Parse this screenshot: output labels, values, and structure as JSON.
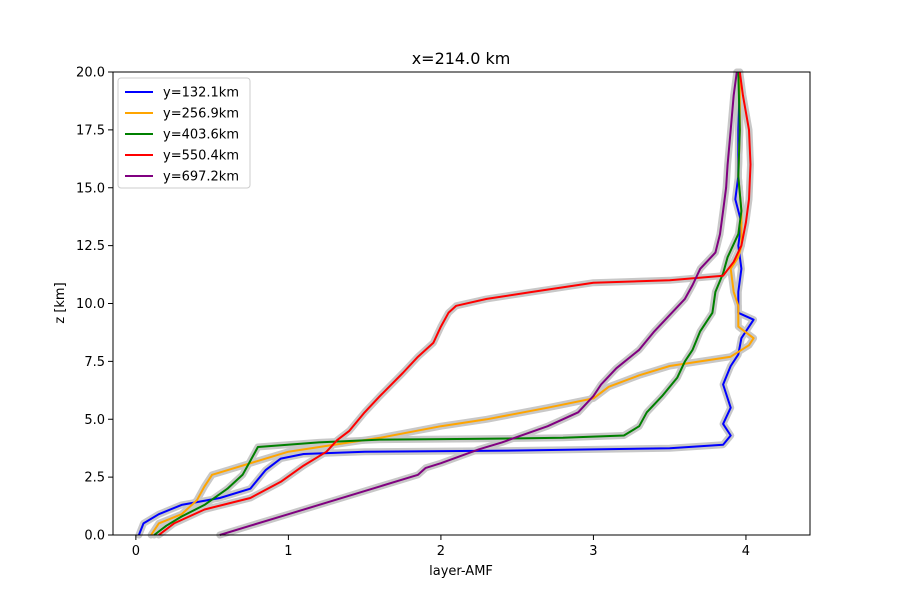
{
  "chart_data": {
    "type": "line",
    "title": "x=214.0 km",
    "xlabel": "layer-AMF",
    "ylabel": "z [km]",
    "xlim": [
      -0.15,
      4.42
    ],
    "ylim": [
      0,
      20
    ],
    "xticks": [
      0,
      1,
      2,
      3,
      4
    ],
    "xtick_labels": [
      "0",
      "1",
      "2",
      "3",
      "4"
    ],
    "yticks": [
      0,
      2.5,
      5,
      7.5,
      10,
      12.5,
      15,
      17.5,
      20
    ],
    "ytick_labels": [
      "0.0",
      "2.5",
      "5.0",
      "7.5",
      "10.0",
      "12.5",
      "15.0",
      "17.5",
      "20.0"
    ],
    "legend_position": "top-left",
    "uncertainty_band_color": "#c8c8c8",
    "series": [
      {
        "name": "y=132.1km",
        "color": "#0000ff",
        "points": [
          [
            0.02,
            0
          ],
          [
            0.05,
            0.5
          ],
          [
            0.15,
            0.9
          ],
          [
            0.3,
            1.3
          ],
          [
            0.55,
            1.6
          ],
          [
            0.75,
            2.0
          ],
          [
            0.85,
            2.8
          ],
          [
            0.95,
            3.3
          ],
          [
            1.1,
            3.5
          ],
          [
            1.5,
            3.6
          ],
          [
            2.5,
            3.65
          ],
          [
            3.5,
            3.75
          ],
          [
            3.85,
            3.9
          ],
          [
            3.9,
            4.3
          ],
          [
            3.85,
            4.8
          ],
          [
            3.9,
            5.5
          ],
          [
            3.85,
            6.5
          ],
          [
            3.9,
            7.3
          ],
          [
            3.95,
            7.8
          ],
          [
            3.97,
            8.5
          ],
          [
            4.05,
            9.3
          ],
          [
            3.95,
            9.6
          ],
          [
            3.95,
            10.5
          ],
          [
            3.97,
            11.5
          ],
          [
            3.95,
            12.5
          ],
          [
            3.97,
            13.5
          ],
          [
            3.93,
            14.5
          ],
          [
            3.95,
            15.5
          ],
          [
            3.95,
            17.5
          ],
          [
            3.96,
            19.5
          ],
          [
            3.96,
            20
          ]
        ]
      },
      {
        "name": "y=256.9km",
        "color": "#ffa500",
        "points": [
          [
            0.1,
            0
          ],
          [
            0.15,
            0.5
          ],
          [
            0.3,
            0.9
          ],
          [
            0.4,
            1.5
          ],
          [
            0.45,
            2.1
          ],
          [
            0.5,
            2.6
          ],
          [
            0.6,
            2.8
          ],
          [
            0.8,
            3.2
          ],
          [
            1.0,
            3.6
          ],
          [
            1.3,
            3.9
          ],
          [
            1.6,
            4.2
          ],
          [
            2.0,
            4.7
          ],
          [
            2.3,
            5.0
          ],
          [
            2.7,
            5.5
          ],
          [
            3.0,
            5.9
          ],
          [
            3.1,
            6.4
          ],
          [
            3.3,
            6.9
          ],
          [
            3.5,
            7.3
          ],
          [
            3.9,
            7.7
          ],
          [
            4.02,
            8.2
          ],
          [
            4.05,
            8.5
          ],
          [
            3.95,
            9.0
          ],
          [
            3.95,
            9.9
          ],
          [
            3.92,
            10.5
          ],
          [
            3.9,
            11.5
          ],
          [
            3.95,
            12.0
          ],
          [
            3.97,
            12.5
          ],
          [
            3.97,
            14.0
          ],
          [
            3.95,
            15.5
          ],
          [
            3.96,
            17.5
          ],
          [
            3.96,
            20
          ]
        ]
      },
      {
        "name": "y=403.6km",
        "color": "#008000",
        "points": [
          [
            0.12,
            0
          ],
          [
            0.2,
            0.4
          ],
          [
            0.3,
            0.8
          ],
          [
            0.45,
            1.3
          ],
          [
            0.6,
            2.0
          ],
          [
            0.7,
            2.6
          ],
          [
            0.75,
            3.2
          ],
          [
            0.8,
            3.8
          ],
          [
            1.2,
            4.0
          ],
          [
            1.6,
            4.12
          ],
          [
            2.2,
            4.15
          ],
          [
            2.8,
            4.2
          ],
          [
            3.2,
            4.3
          ],
          [
            3.3,
            4.7
          ],
          [
            3.35,
            5.3
          ],
          [
            3.45,
            6.0
          ],
          [
            3.55,
            6.8
          ],
          [
            3.6,
            7.5
          ],
          [
            3.65,
            8.0
          ],
          [
            3.7,
            8.8
          ],
          [
            3.78,
            9.6
          ],
          [
            3.8,
            10.5
          ],
          [
            3.85,
            11.3
          ],
          [
            3.88,
            12.0
          ],
          [
            3.95,
            13.0
          ],
          [
            3.97,
            14.0
          ],
          [
            3.95,
            15.5
          ],
          [
            3.96,
            17.5
          ],
          [
            3.95,
            20
          ]
        ]
      },
      {
        "name": "y=550.4km",
        "color": "#ff0000",
        "points": [
          [
            0.15,
            0
          ],
          [
            0.25,
            0.5
          ],
          [
            0.45,
            1.1
          ],
          [
            0.75,
            1.6
          ],
          [
            0.95,
            2.3
          ],
          [
            1.1,
            3.0
          ],
          [
            1.25,
            3.6
          ],
          [
            1.32,
            4.1
          ],
          [
            1.4,
            4.5
          ],
          [
            1.5,
            5.3
          ],
          [
            1.6,
            6.0
          ],
          [
            1.75,
            7.0
          ],
          [
            1.85,
            7.7
          ],
          [
            1.95,
            8.3
          ],
          [
            2.0,
            9.0
          ],
          [
            2.05,
            9.6
          ],
          [
            2.1,
            9.9
          ],
          [
            2.3,
            10.2
          ],
          [
            2.6,
            10.5
          ],
          [
            3.0,
            10.9
          ],
          [
            3.5,
            11.0
          ],
          [
            3.85,
            11.2
          ],
          [
            3.92,
            11.8
          ],
          [
            3.97,
            12.5
          ],
          [
            4.0,
            13.5
          ],
          [
            4.02,
            14.5
          ],
          [
            4.03,
            16.0
          ],
          [
            4.02,
            17.5
          ],
          [
            3.98,
            19
          ],
          [
            3.96,
            20
          ]
        ]
      },
      {
        "name": "y=697.2km",
        "color": "#800080",
        "points": [
          [
            0.55,
            0
          ],
          [
            0.75,
            0.4
          ],
          [
            1.0,
            0.9
          ],
          [
            1.3,
            1.5
          ],
          [
            1.6,
            2.1
          ],
          [
            1.85,
            2.6
          ],
          [
            1.9,
            2.9
          ],
          [
            2.0,
            3.1
          ],
          [
            2.25,
            3.7
          ],
          [
            2.4,
            4.0
          ],
          [
            2.7,
            4.7
          ],
          [
            2.9,
            5.3
          ],
          [
            3.0,
            6.0
          ],
          [
            3.05,
            6.5
          ],
          [
            3.15,
            7.2
          ],
          [
            3.3,
            8.0
          ],
          [
            3.4,
            8.8
          ],
          [
            3.5,
            9.5
          ],
          [
            3.6,
            10.2
          ],
          [
            3.65,
            10.8
          ],
          [
            3.7,
            11.5
          ],
          [
            3.8,
            12.2
          ],
          [
            3.83,
            13.0
          ],
          [
            3.85,
            14.0
          ],
          [
            3.87,
            15.0
          ],
          [
            3.88,
            16.0
          ],
          [
            3.9,
            17.5
          ],
          [
            3.92,
            19
          ],
          [
            3.94,
            20
          ]
        ]
      }
    ]
  }
}
